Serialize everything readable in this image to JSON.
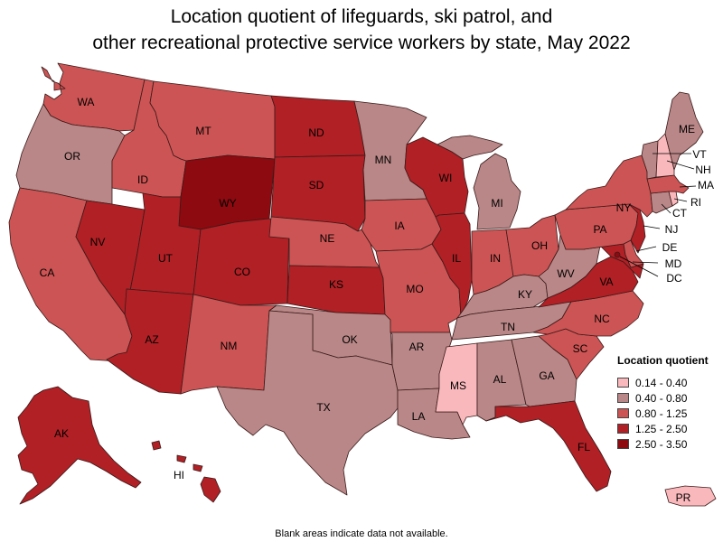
{
  "title": {
    "line1": "Location quotient of lifeguards, ski patrol, and",
    "line2": "other recreational protective service workers by state, May 2022"
  },
  "legend": {
    "title": "Location quotient",
    "items": [
      {
        "label": "0.14 - 0.40",
        "color": "#f9b9bc"
      },
      {
        "label": "0.40 - 0.80",
        "color": "#b98787"
      },
      {
        "label": "0.80 - 1.25",
        "color": "#cd5454"
      },
      {
        "label": "1.25 - 2.50",
        "color": "#b02025"
      },
      {
        "label": "2.50 - 3.50",
        "color": "#8c0a10"
      }
    ]
  },
  "footer": "Blank areas indicate data not available.",
  "states": {
    "WA": 2,
    "OR": 1,
    "CA": 2,
    "ID": 2,
    "NV": 3,
    "MT": 2,
    "WY": 4,
    "UT": 3,
    "AZ": 3,
    "CO": 3,
    "NM": 2,
    "ND": 3,
    "SD": 3,
    "NE": 2,
    "KS": 3,
    "OK": 1,
    "TX": 1,
    "MN": 1,
    "IA": 2,
    "MO": 2,
    "AR": 1,
    "LA": 1,
    "WI": 3,
    "IL": 3,
    "MI": 1,
    "IN": 2,
    "OH": 2,
    "KY": 1,
    "TN": 1,
    "MS": 0,
    "AL": 1,
    "GA": 1,
    "FL": 3,
    "SC": 2,
    "NC": 2,
    "VA": 3,
    "WV": 1,
    "PA": 2,
    "NY": 2,
    "ME": 1,
    "VT": 1,
    "NH": 0,
    "MA": 2,
    "RI": 0,
    "CT": 1,
    "NJ": 3,
    "DE": 2,
    "MD": 3,
    "DC": 4,
    "AK": 3,
    "HI": 3,
    "PR": 0
  }
}
